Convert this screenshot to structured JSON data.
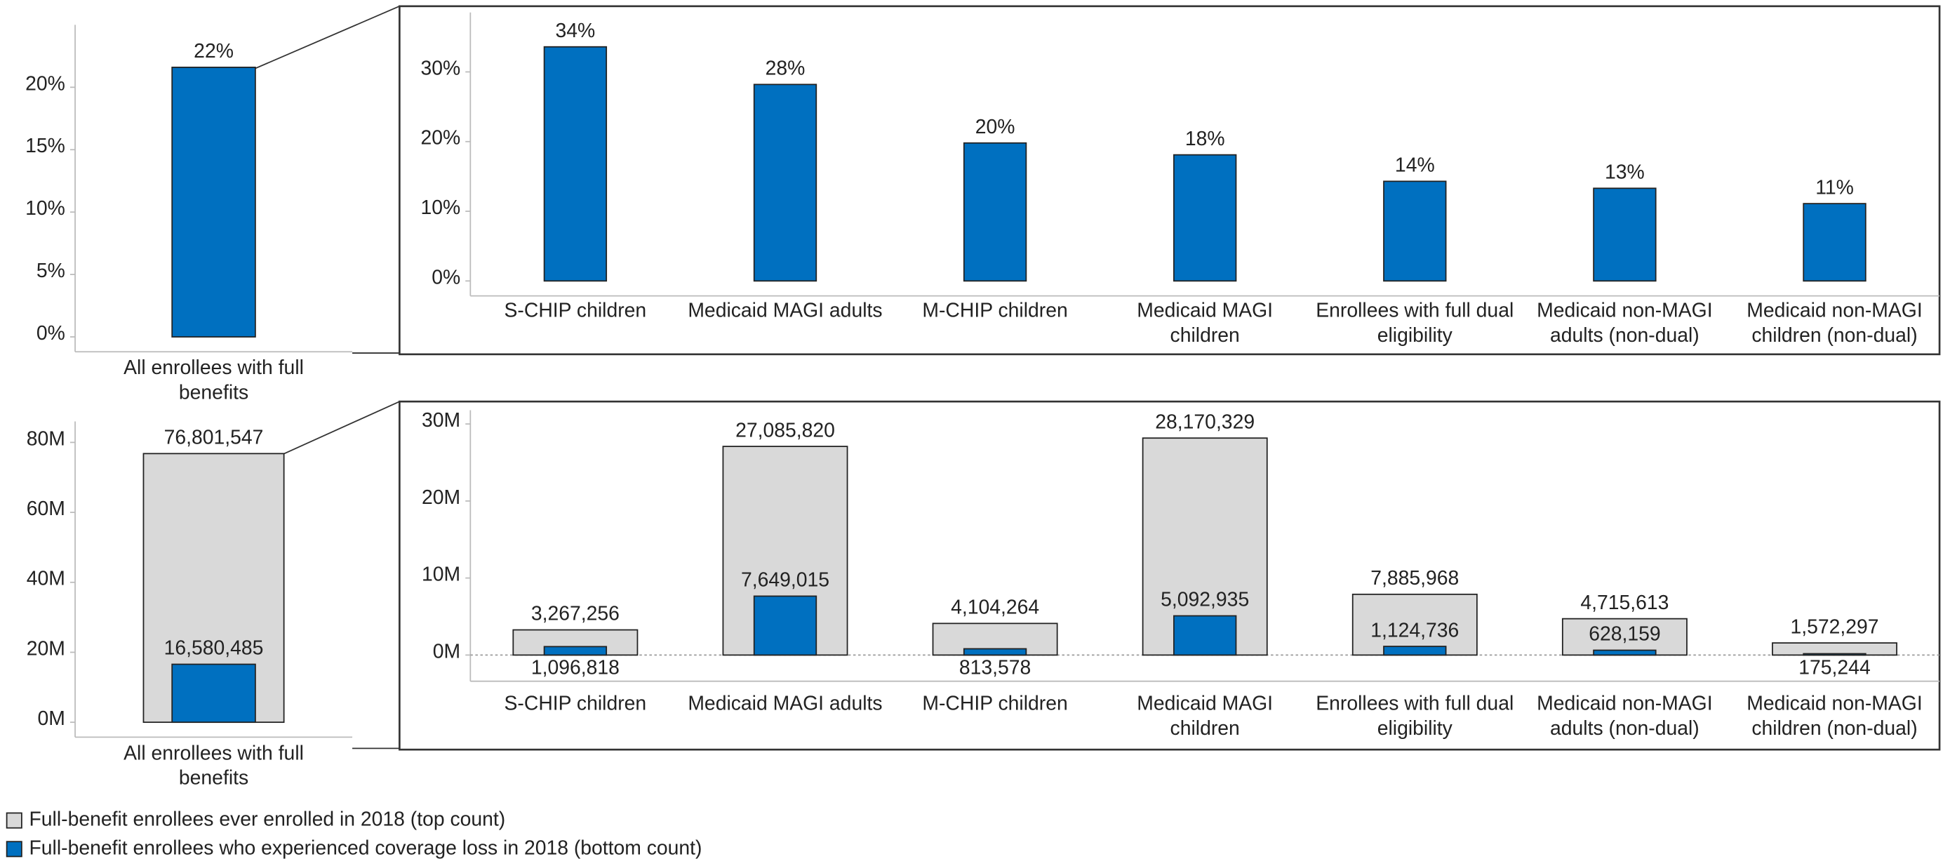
{
  "chart_data": [
    {
      "type": "bar",
      "categories": [
        "All enrollees with full benefits"
      ],
      "values": [
        21.6
      ],
      "value_labels": [
        "22%"
      ],
      "color": "#0070c0",
      "ylim": [
        0,
        25
      ],
      "yticks": [
        {
          "value": 0,
          "label": "0%"
        },
        {
          "value": 5,
          "label": "5%"
        },
        {
          "value": 10,
          "label": "10%"
        },
        {
          "value": 15,
          "label": "15%"
        },
        {
          "value": 20,
          "label": "20%"
        }
      ]
    },
    {
      "type": "bar",
      "categories": [
        "S-CHIP children",
        "Medicaid MAGI adults",
        "M-CHIP children",
        "Medicaid MAGI children",
        "Enrollees with full dual eligibility",
        "Medicaid non-MAGI adults (non-dual)",
        "Medicaid non-MAGI children (non-dual)"
      ],
      "values": [
        33.6,
        28.2,
        19.8,
        18.1,
        14.3,
        13.3,
        11.1
      ],
      "value_labels": [
        "34%",
        "28%",
        "20%",
        "18%",
        "14%",
        "13%",
        "11%"
      ],
      "color": "#0070c0",
      "ylim": [
        0,
        38
      ],
      "yticks": [
        {
          "value": 0,
          "label": "0%"
        },
        {
          "value": 10,
          "label": "10%"
        },
        {
          "value": 20,
          "label": "20%"
        },
        {
          "value": 30,
          "label": "30%"
        }
      ]
    },
    {
      "type": "overlap_bar",
      "categories": [
        "All enrollees with full benefits"
      ],
      "series": [
        {
          "values": [
            76801547
          ],
          "value_labels": [
            "76,801,547"
          ]
        },
        {
          "values": [
            16580485
          ],
          "value_labels": [
            "16,580,485"
          ]
        }
      ],
      "ylim": [
        0,
        86000000
      ],
      "yticks": [
        {
          "value": 0,
          "label": "0M"
        },
        {
          "value": 20000000,
          "label": "20M"
        },
        {
          "value": 40000000,
          "label": "40M"
        },
        {
          "value": 60000000,
          "label": "60M"
        },
        {
          "value": 80000000,
          "label": "80M"
        }
      ]
    },
    {
      "type": "overlap_bar",
      "categories": [
        "S-CHIP children",
        "Medicaid MAGI adults",
        "M-CHIP children",
        "Medicaid MAGI children",
        "Enrollees with full dual eligibility",
        "Medicaid non-MAGI adults (non-dual)",
        "Medicaid non-MAGI children (non-dual)"
      ],
      "series": [
        {
          "values": [
            3267256,
            27085820,
            4104264,
            28170329,
            7885968,
            4715613,
            1572297
          ],
          "value_labels": [
            "3,267,256",
            "27,085,820",
            "4,104,264",
            "28,170,329",
            "7,885,968",
            "4,715,613",
            "1,572,297"
          ]
        },
        {
          "values": [
            1096818,
            7649015,
            813578,
            5092935,
            1124736,
            628159,
            175244
          ],
          "value_labels": [
            "1,096,818",
            "7,649,015",
            "813,578",
            "5,092,935",
            "1,124,736",
            "628,159",
            "175,244"
          ]
        }
      ],
      "ylim": [
        -3400000,
        31300000
      ],
      "yticks": [
        {
          "value": 0,
          "label": "0M"
        },
        {
          "value": 10000000,
          "label": "10M"
        },
        {
          "value": 20000000,
          "label": "20M"
        },
        {
          "value": 30000000,
          "label": "30M"
        }
      ]
    }
  ],
  "legend": [
    {
      "name": "Full-benefit enrollees ever enrolled in 2018 (top count)",
      "color": "#d9d9d9"
    },
    {
      "name": "Full-benefit enrollees who experienced coverage loss in 2018 (bottom count)",
      "color": "#0070c0"
    }
  ]
}
